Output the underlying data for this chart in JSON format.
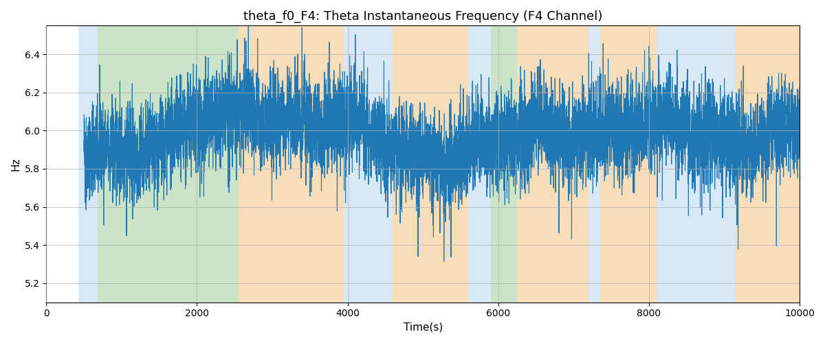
{
  "title": "theta_f0_F4: Theta Instantaneous Frequency (F4 Channel)",
  "xlabel": "Time(s)",
  "ylabel": "Hz",
  "xlim": [
    0,
    10000
  ],
  "ylim": [
    5.1,
    6.55
  ],
  "yticks": [
    5.2,
    5.4,
    5.6,
    5.8,
    6.0,
    6.2,
    6.4
  ],
  "xticks": [
    0,
    2000,
    4000,
    6000,
    8000,
    10000
  ],
  "line_color": "#1f77b4",
  "line_width": 0.8,
  "background_color": "#ffffff",
  "grid_color": "#b0b0b0",
  "colored_bands": [
    {
      "xmin": 430,
      "xmax": 680,
      "color": "#c8dff0",
      "alpha": 0.7
    },
    {
      "xmin": 680,
      "xmax": 2550,
      "color": "#b5d9b0",
      "alpha": 0.7
    },
    {
      "xmin": 2550,
      "xmax": 3950,
      "color": "#f5d09a",
      "alpha": 0.7
    },
    {
      "xmin": 3950,
      "xmax": 4600,
      "color": "#c8dff0",
      "alpha": 0.7
    },
    {
      "xmin": 4600,
      "xmax": 5600,
      "color": "#f5d09a",
      "alpha": 0.7
    },
    {
      "xmin": 5600,
      "xmax": 5900,
      "color": "#c8dff0",
      "alpha": 0.7
    },
    {
      "xmin": 5900,
      "xmax": 6250,
      "color": "#b5d9b0",
      "alpha": 0.7
    },
    {
      "xmin": 6250,
      "xmax": 7200,
      "color": "#f5d09a",
      "alpha": 0.7
    },
    {
      "xmin": 7200,
      "xmax": 7350,
      "color": "#c8dff0",
      "alpha": 0.7
    },
    {
      "xmin": 7350,
      "xmax": 8100,
      "color": "#f5d09a",
      "alpha": 0.7
    },
    {
      "xmin": 8100,
      "xmax": 9150,
      "color": "#c8dff0",
      "alpha": 0.7
    },
    {
      "xmin": 9150,
      "xmax": 10000,
      "color": "#f5d09a",
      "alpha": 0.7
    }
  ],
  "seed": 42,
  "n_points": 9500,
  "base_freq": 5.98,
  "noise_std": 0.12
}
